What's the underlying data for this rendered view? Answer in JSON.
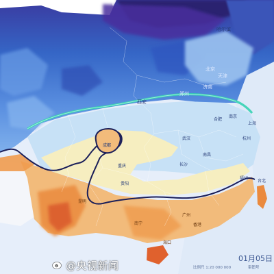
{
  "map": {
    "date_label": "01月05日",
    "scale_label": "比例尺 1:20 000 000",
    "map_number": "审图号",
    "watermark": "@央视新闻",
    "colors": {
      "sea": "#e7f0fb",
      "deep_cold": "#1c2a86",
      "cold_purple": "#46349b",
      "cold_blue": "#3566c6",
      "mid_blue": "#5a8fe0",
      "light_blue": "#9cc3f0",
      "pale_blue": "#c9e2f7",
      "teal_line": "#39d0b0",
      "cream": "#f7efc2",
      "light_orange": "#f5c88a",
      "orange": "#ef9b4e",
      "deep_orange": "#e47a35",
      "red_orange": "#d9572a",
      "contour": "#1a1f5a"
    }
  },
  "cities": [
    {
      "name": "哈尔滨",
      "style": "dark"
    },
    {
      "name": "北京",
      "style": "light"
    },
    {
      "name": "天津",
      "style": "light"
    },
    {
      "name": "济南",
      "style": "light"
    },
    {
      "name": "郑州",
      "style": "light"
    },
    {
      "name": "西安",
      "style": "dark"
    },
    {
      "name": "合肥",
      "style": "dark"
    },
    {
      "name": "南京",
      "style": "dark"
    },
    {
      "name": "上海",
      "style": "dark"
    },
    {
      "name": "武汉",
      "style": "dark"
    },
    {
      "name": "杭州",
      "style": "dark"
    },
    {
      "name": "成都",
      "style": "dark"
    },
    {
      "name": "重庆",
      "style": "dark"
    },
    {
      "name": "长沙",
      "style": "dark"
    },
    {
      "name": "南昌",
      "style": "dark"
    },
    {
      "name": "贵阳",
      "style": "dark"
    },
    {
      "name": "福州",
      "style": "dark"
    },
    {
      "name": "昆明",
      "style": "warm"
    },
    {
      "name": "广州",
      "style": "warm"
    },
    {
      "name": "南宁",
      "style": "warm"
    },
    {
      "name": "香港",
      "style": "warm"
    },
    {
      "name": "海口",
      "style": "warm"
    },
    {
      "name": "台北",
      "style": "dark"
    }
  ]
}
